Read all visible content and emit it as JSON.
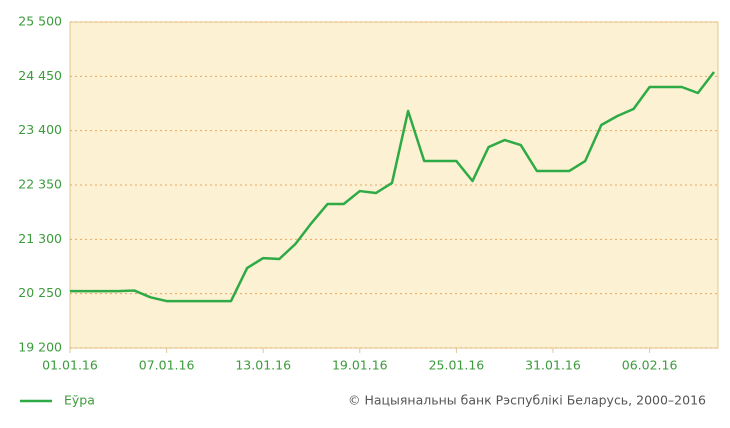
{
  "chart_data": {
    "type": "line",
    "categories": [
      "01.01.16",
      null,
      null,
      null,
      null,
      null,
      "07.01.16",
      null,
      null,
      null,
      null,
      null,
      "13.01.16",
      null,
      null,
      null,
      null,
      null,
      "19.01.16",
      null,
      null,
      null,
      null,
      null,
      "25.01.16",
      null,
      null,
      null,
      null,
      null,
      "31.01.16",
      null,
      null,
      null,
      null,
      null,
      "06.02.16",
      null,
      null,
      null,
      null
    ],
    "series": [
      {
        "name": "Еўра",
        "color": "#2eaa46",
        "values": [
          20300,
          20300,
          20300,
          20300,
          20310,
          20180,
          20107,
          20107,
          20107,
          20107,
          20107,
          20745,
          20938,
          20920,
          21210,
          21615,
          21983,
          21983,
          22233,
          22195,
          22390,
          23780,
          22813,
          22813,
          22813,
          22427,
          23083,
          23219,
          23122,
          22620,
          22620,
          22620,
          22813,
          23510,
          23683,
          23818,
          24244,
          24244,
          24244,
          24128,
          24533
        ]
      }
    ],
    "ylim": [
      19200,
      25500
    ],
    "yticks": [
      {
        "value": 19200,
        "label": "19 200"
      },
      {
        "value": 20250,
        "label": "20 250"
      },
      {
        "value": 21300,
        "label": "21 300"
      },
      {
        "value": 22350,
        "label": "22 350"
      },
      {
        "value": 23400,
        "label": "23 400"
      },
      {
        "value": 24450,
        "label": "24 450"
      },
      {
        "value": 25500,
        "label": "25 500"
      }
    ],
    "grid": true,
    "background": "#fcf1d3",
    "grid_color": "#e8a860",
    "copyright": "© Нацыянальны банк Рэспублікі Беларусь, 2000–2016"
  }
}
